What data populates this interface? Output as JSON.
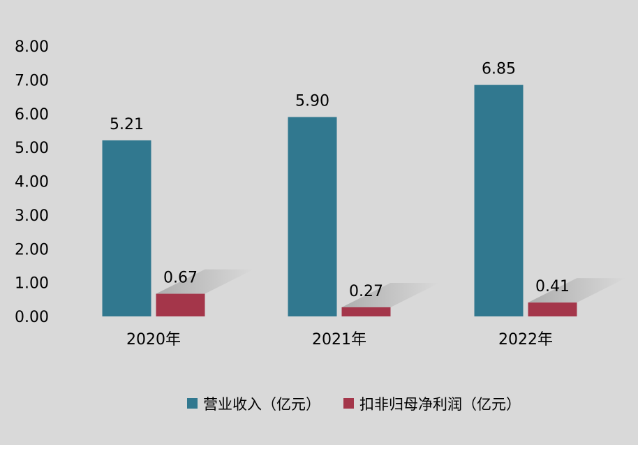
{
  "chart_data": {
    "type": "bar",
    "categories": [
      "2020年",
      "2021年",
      "2022年"
    ],
    "series": [
      {
        "name": "营业收入（亿元）",
        "values": [
          5.21,
          5.9,
          6.85
        ],
        "labels": [
          "5.21",
          "5.90",
          "6.85"
        ],
        "color": "#31788f"
      },
      {
        "name": "扣非归母净利润（亿元）",
        "values": [
          0.67,
          0.27,
          0.41
        ],
        "labels": [
          "0.67",
          "0.27",
          "0.41"
        ],
        "color": "#a4364a"
      }
    ],
    "y_ticks": [
      "0.00",
      "1.00",
      "2.00",
      "3.00",
      "4.00",
      "5.00",
      "6.00",
      "7.00",
      "8.00"
    ],
    "ylim": [
      0,
      8
    ],
    "grid": false,
    "legend_position": "bottom",
    "background": "#d9d9d9"
  }
}
